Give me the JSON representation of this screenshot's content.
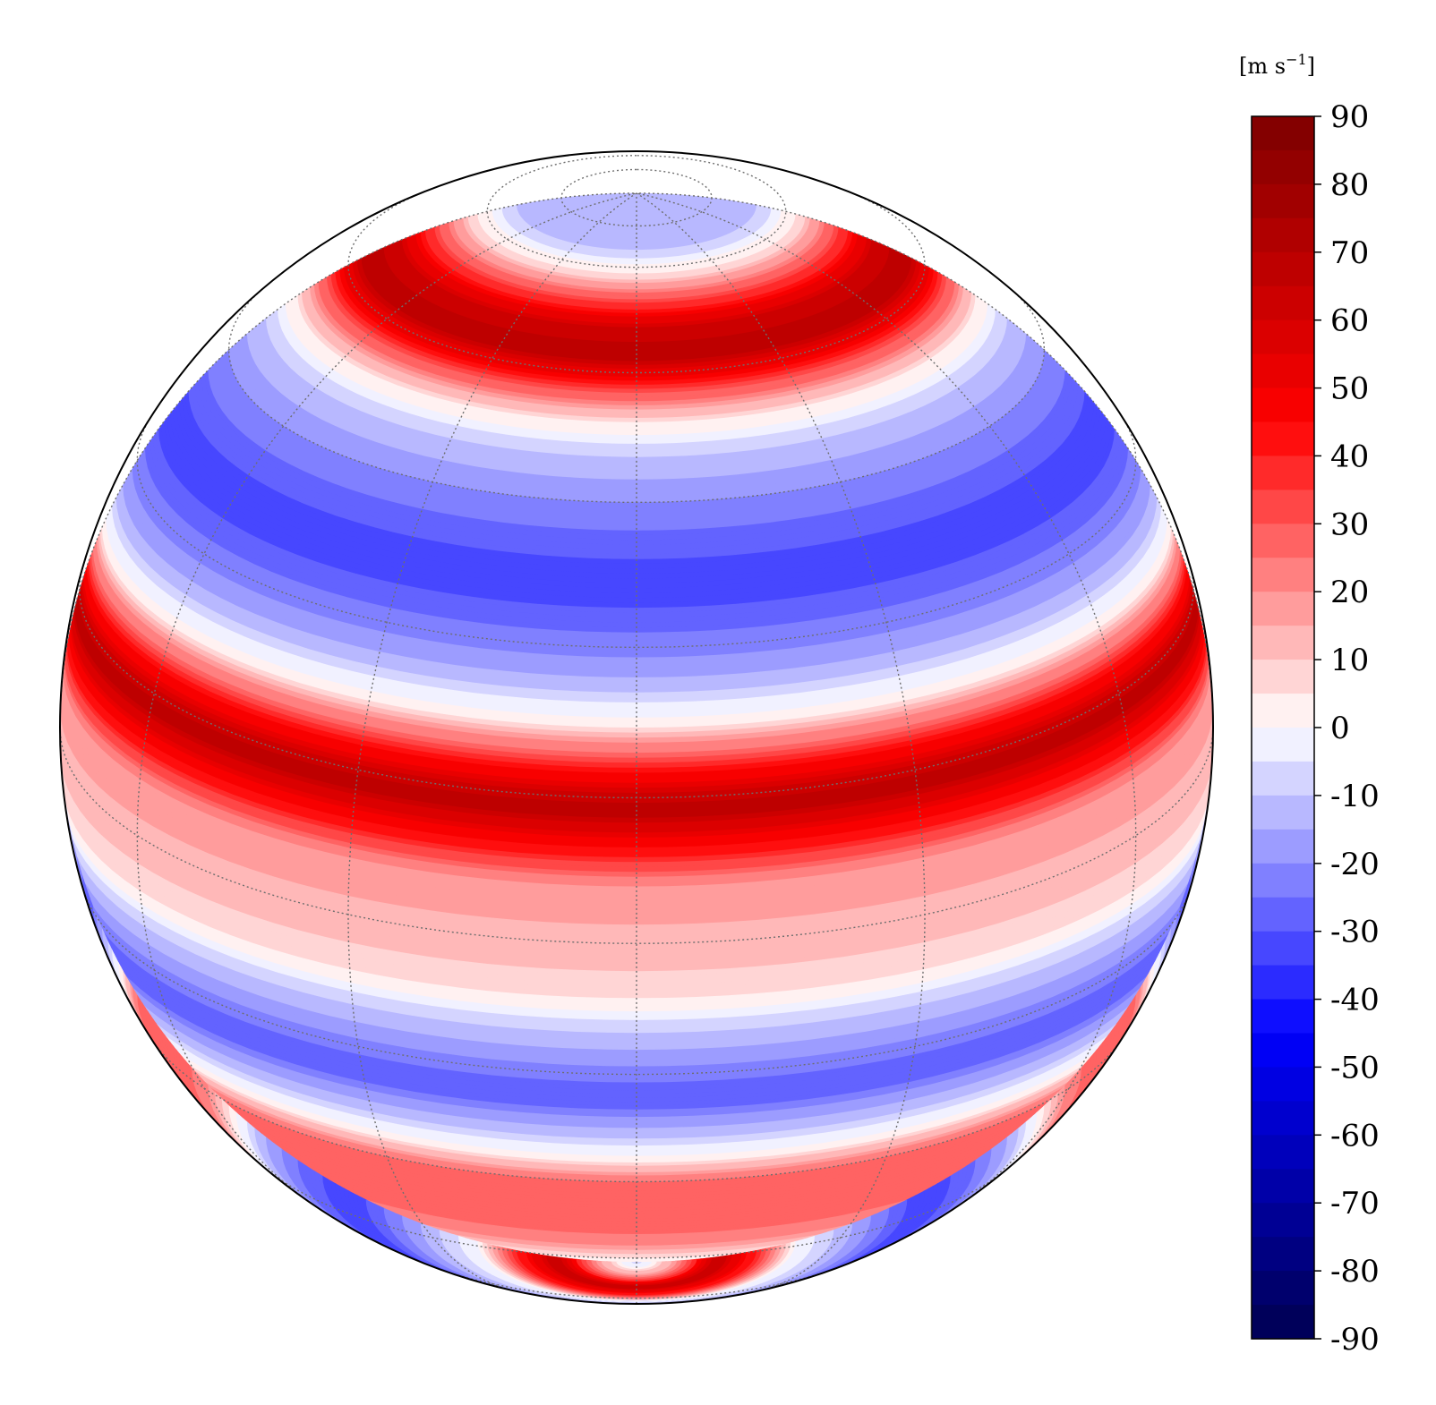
{
  "chart_data": {
    "type": "heatmap",
    "projection": "orthographic",
    "title": "",
    "colorbar": {
      "unit_main": "[m s",
      "unit_sup": "−1",
      "unit_close": "]",
      "min": -90,
      "max": 90,
      "step": 5,
      "ticks": [
        "90",
        "80",
        "70",
        "60",
        "50",
        "40",
        "30",
        "20",
        "10",
        "0",
        "-10",
        "-20",
        "-30",
        "-40",
        "-50",
        "-60",
        "-70",
        "-80",
        "-90"
      ],
      "colormap": "bwr"
    },
    "zonal_wind_profile": {
      "latitude_deg": [
        90,
        86,
        82,
        78,
        74,
        70,
        66,
        62,
        58,
        54,
        50,
        46,
        42,
        38,
        34,
        30,
        26,
        22,
        18,
        14,
        10,
        6,
        2,
        -2,
        -6,
        -10,
        -14,
        -18,
        -22,
        -26,
        -30,
        -34,
        -38,
        -42,
        -46,
        -50,
        -54,
        -58,
        -62,
        -66,
        -70,
        -74,
        -78,
        -82,
        -86,
        -90
      ],
      "speed_m_s": [
        -12,
        -12,
        -12,
        -10,
        5,
        30,
        60,
        70,
        35,
        5,
        -10,
        -18,
        -25,
        -32,
        -30,
        -22,
        -12,
        5,
        40,
        70,
        45,
        20,
        15,
        12,
        5,
        -10,
        -20,
        -30,
        -15,
        0,
        25,
        30,
        28,
        20,
        0,
        -15,
        -25,
        -32,
        -30,
        -20,
        -10,
        0,
        40,
        65,
        20,
        -10
      ]
    },
    "grid": true,
    "gridlines": {
      "meridians_deg": [
        -90,
        -60,
        -30,
        0,
        30,
        60,
        90
      ],
      "parallels_deg": [
        -75,
        -60,
        -45,
        -30,
        -15,
        0,
        15,
        30,
        45,
        60,
        75
      ]
    },
    "view": {
      "center_lat_deg": 22,
      "center_lon_deg": 0
    }
  }
}
